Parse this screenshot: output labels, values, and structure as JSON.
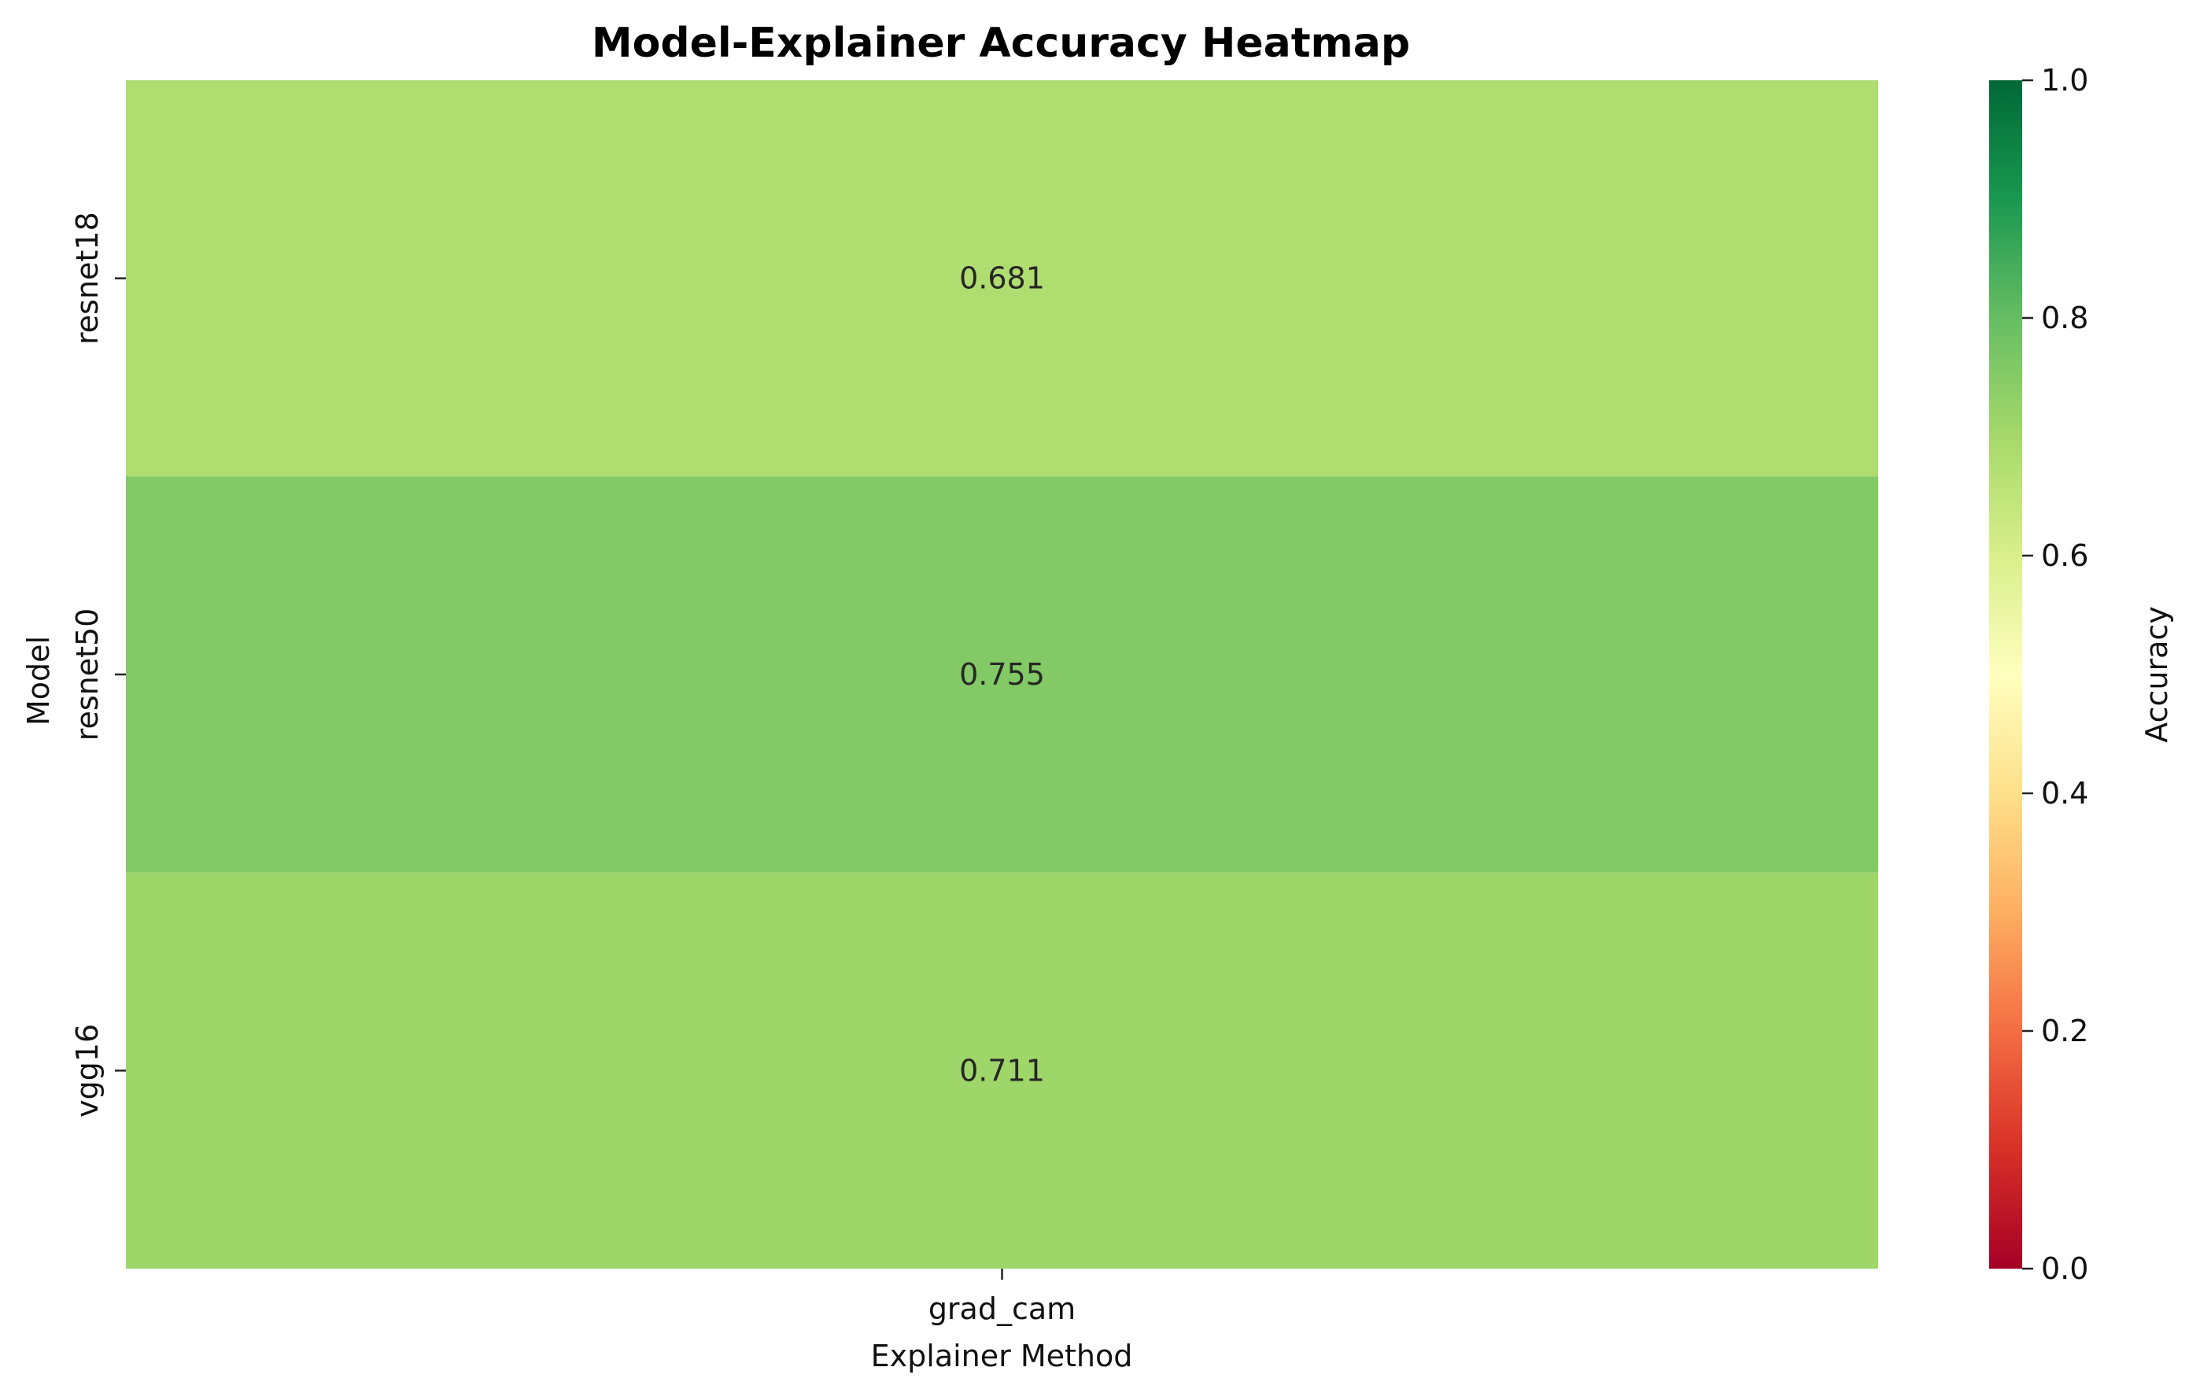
{
  "chart_data": {
    "type": "heatmap",
    "title": "Model-Explainer Accuracy Heatmap",
    "xlabel": "Explainer Method",
    "ylabel": "Model",
    "x_categories": [
      "grad_cam"
    ],
    "y_categories": [
      "resnet18",
      "resnet50",
      "vgg16"
    ],
    "values": [
      [
        0.681
      ],
      [
        0.755
      ],
      [
        0.711
      ]
    ],
    "value_labels": [
      "0.681",
      "0.755",
      "0.711"
    ],
    "colorbar": {
      "label": "Accuracy",
      "colormap": "RdYlGn",
      "range": [
        0.0,
        1.0
      ],
      "ticks": [
        "0.0",
        "0.2",
        "0.4",
        "0.6",
        "0.8",
        "1.0"
      ],
      "tick_values": [
        0.0,
        0.2,
        0.4,
        0.6,
        0.8,
        1.0
      ]
    },
    "grid": false
  }
}
